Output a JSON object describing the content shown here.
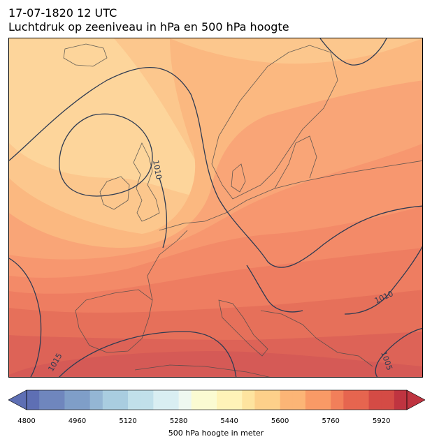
{
  "header": {
    "datetime": "17-07-1820 12 UTC",
    "title": "Luchtdruk op zeeniveau in hPa en 500 hPa hoogte"
  },
  "isobar_labels": [
    "1010",
    "1010",
    "1005",
    "1015"
  ],
  "colorbar": {
    "label": "500 hPa hoogte in meter",
    "min": 4800,
    "max": 6000,
    "step": 40,
    "ticks": [
      4800,
      4960,
      5120,
      5280,
      5440,
      5600,
      5760,
      5920
    ],
    "colormap": "RdYlBu_r",
    "colors": [
      "#5e6fb4",
      "#6f86bd",
      "#7f9ec8",
      "#94b6d4",
      "#a9cde0",
      "#c1e0ea",
      "#d9eef2",
      "#eef8f0",
      "#fbfbd2",
      "#fff3b8",
      "#fee49f",
      "#fdd08a",
      "#fcb576",
      "#f99a66",
      "#f27f5a",
      "#e6654f",
      "#d44b45",
      "#bf3440"
    ]
  },
  "map_colors": {
    "outline": "#2f3b52",
    "field": [
      "#fdd59b",
      "#fcc78d",
      "#fbb880",
      "#f9a577",
      "#f7976f",
      "#f38a68",
      "#ee7d61",
      "#e6705a",
      "#dd6357",
      "#d55a56"
    ]
  }
}
